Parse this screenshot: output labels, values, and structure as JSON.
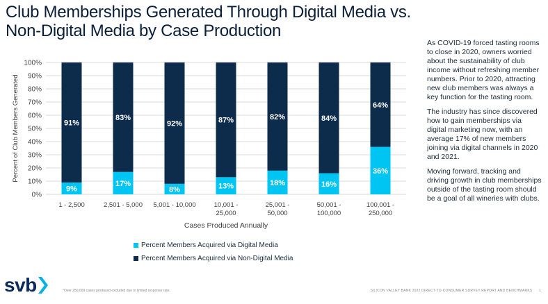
{
  "title": "Club Memberships Generated Through Digital Media vs. Non-Digital Media by Case Production",
  "colors": {
    "digital": "#00c4f2",
    "non_digital": "#0d2b4b",
    "logo_accent": "#00b2e3"
  },
  "chart_data": {
    "type": "bar",
    "stacked": true,
    "categories": [
      "1 - 2,500",
      "2,501 - 5,000",
      "5,001 - 10,000",
      "10,001 - 25,000",
      "25,001 - 50,000",
      "50,001 - 100,000",
      "100,001 - 250,000"
    ],
    "category_lines": [
      [
        "1 - 2,500"
      ],
      [
        "2,501 - 5,000"
      ],
      [
        "5,001 - 10,000"
      ],
      [
        "10,001 -",
        "25,000"
      ],
      [
        "25,001 -",
        "50,000"
      ],
      [
        "50,001 -",
        "100,000"
      ],
      [
        "100,001 -",
        "250,000"
      ]
    ],
    "series": [
      {
        "name": "Percent Members Acquired via Digital Media",
        "values": [
          9,
          17,
          8,
          13,
          18,
          16,
          36
        ],
        "labels": [
          "9%",
          "17%",
          "8%",
          "13%",
          "18%",
          "16%",
          "36%"
        ]
      },
      {
        "name": "Percent Members Acquired via Non-Digital Media",
        "values": [
          91,
          83,
          92,
          87,
          82,
          84,
          64
        ],
        "labels": [
          "91%",
          "83%",
          "92%",
          "87%",
          "82%",
          "84%",
          "64%"
        ]
      }
    ],
    "xlabel": "Cases Produced Annually",
    "ylabel": "Percent of Club Members Generated",
    "ylim": [
      0,
      100
    ],
    "yticks": [
      "0%",
      "10%",
      "20%",
      "30%",
      "40%",
      "50%",
      "60%",
      "70%",
      "80%",
      "90%",
      "100%"
    ],
    "grid": true
  },
  "legend": {
    "digital": "Percent Members Acquired via Digital Media",
    "non_digital": "Percent Members Acquired via Non-Digital Media"
  },
  "side_text": {
    "p1": "As COVID-19 forced tasting rooms to close in 2020, owners worried about the sustainability of club income without refreshing member numbers. Prior to 2020, attracting new club members was always a key function for the tasting room.",
    "p2": "The industry has since discovered how to gain memberships via digital marketing now, with an average 17% of new members joining via digital channels in 2020 and 2021.",
    "p3": "Moving forward, tracking and driving growth in club memberships outside of the tasting room should be a goal of all wineries with clubs."
  },
  "logo": {
    "text": "svb",
    "icon": "chevron-right-icon"
  },
  "footnote": "*Over 250,000 cases produced excluded due to limited response rate.",
  "footer": {
    "report": "SILICON VALLEY BANK 2022 DIRECT-TO-CONSUMER SURVEY REPORT AND BENCHMARKS",
    "page": "1"
  }
}
